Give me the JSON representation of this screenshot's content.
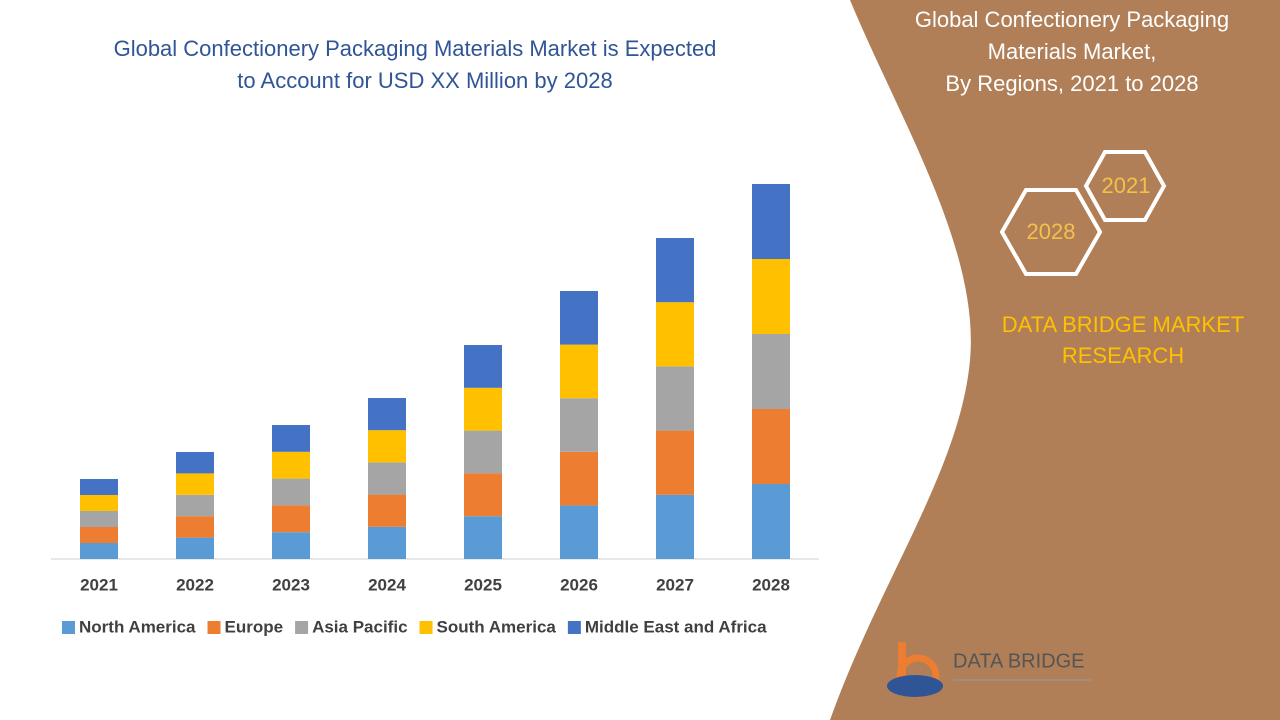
{
  "chart_data": {
    "type": "stacked_bar",
    "title": [
      "Global Confectionery Packaging Materials Market is Expected",
      "to Account for USD XX Million by 2028"
    ],
    "categories": [
      "2021",
      "2022",
      "2023",
      "2024",
      "2025",
      "2026",
      "2027",
      "2028"
    ],
    "series": [
      {
        "name": "North America",
        "color": "#5b9bd5",
        "values": [
          16,
          21.4,
          26.8,
          32.2,
          42.8,
          53.6,
          64.2,
          75
        ]
      },
      {
        "name": "Europe",
        "color": "#ed7d31",
        "values": [
          16,
          21.4,
          26.8,
          32.2,
          42.8,
          53.6,
          64.2,
          75
        ]
      },
      {
        "name": "Asia Pacific",
        "color": "#a5a5a5",
        "values": [
          16,
          21.4,
          26.8,
          32.2,
          42.8,
          53.6,
          64.2,
          75
        ]
      },
      {
        "name": "South America",
        "color": "#ffc000",
        "values": [
          16,
          21.4,
          26.8,
          32.2,
          42.8,
          53.6,
          64.2,
          75
        ]
      },
      {
        "name": "Middle East and Africa",
        "color": "#4472c4",
        "values": [
          16,
          21.4,
          26.8,
          32.2,
          42.8,
          53.6,
          64.2,
          75
        ]
      }
    ],
    "ylim": [
      0,
      400
    ]
  },
  "panel": {
    "title": [
      "Global Confectionery Packaging",
      "Materials Market,",
      "By Regions, 2021 to 2028"
    ],
    "hex_back": "2021",
    "hex_front": "2028",
    "brand": [
      "DATA BRIDGE MARKET",
      "RESEARCH"
    ],
    "logo": "DATA BRIDGE"
  }
}
